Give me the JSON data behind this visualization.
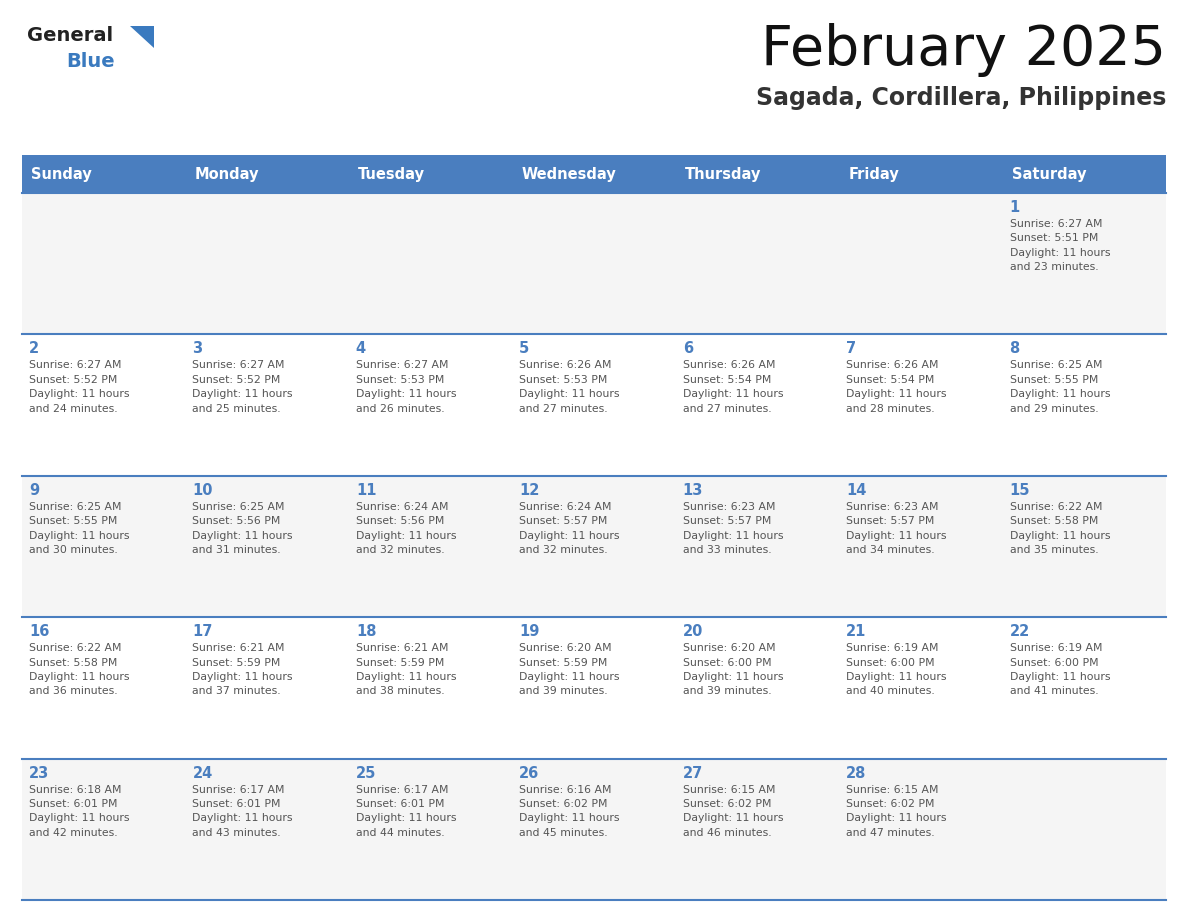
{
  "title": "February 2025",
  "subtitle": "Sagada, Cordillera, Philippines",
  "header_bg": "#4a7ebf",
  "header_text_color": "#FFFFFF",
  "day_names": [
    "Sunday",
    "Monday",
    "Tuesday",
    "Wednesday",
    "Thursday",
    "Friday",
    "Saturday"
  ],
  "row_bg_odd": "#f5f5f5",
  "row_bg_even": "#ffffff",
  "separator_color": "#4a7ebf",
  "day_num_color": "#4a7ebf",
  "info_text_color": "#555555",
  "logo_general_color": "#222222",
  "logo_blue_color": "#3a7abf",
  "calendar": [
    [
      {
        "day": null,
        "info": ""
      },
      {
        "day": null,
        "info": ""
      },
      {
        "day": null,
        "info": ""
      },
      {
        "day": null,
        "info": ""
      },
      {
        "day": null,
        "info": ""
      },
      {
        "day": null,
        "info": ""
      },
      {
        "day": 1,
        "info": "Sunrise: 6:27 AM\nSunset: 5:51 PM\nDaylight: 11 hours\nand 23 minutes."
      }
    ],
    [
      {
        "day": 2,
        "info": "Sunrise: 6:27 AM\nSunset: 5:52 PM\nDaylight: 11 hours\nand 24 minutes."
      },
      {
        "day": 3,
        "info": "Sunrise: 6:27 AM\nSunset: 5:52 PM\nDaylight: 11 hours\nand 25 minutes."
      },
      {
        "day": 4,
        "info": "Sunrise: 6:27 AM\nSunset: 5:53 PM\nDaylight: 11 hours\nand 26 minutes."
      },
      {
        "day": 5,
        "info": "Sunrise: 6:26 AM\nSunset: 5:53 PM\nDaylight: 11 hours\nand 27 minutes."
      },
      {
        "day": 6,
        "info": "Sunrise: 6:26 AM\nSunset: 5:54 PM\nDaylight: 11 hours\nand 27 minutes."
      },
      {
        "day": 7,
        "info": "Sunrise: 6:26 AM\nSunset: 5:54 PM\nDaylight: 11 hours\nand 28 minutes."
      },
      {
        "day": 8,
        "info": "Sunrise: 6:25 AM\nSunset: 5:55 PM\nDaylight: 11 hours\nand 29 minutes."
      }
    ],
    [
      {
        "day": 9,
        "info": "Sunrise: 6:25 AM\nSunset: 5:55 PM\nDaylight: 11 hours\nand 30 minutes."
      },
      {
        "day": 10,
        "info": "Sunrise: 6:25 AM\nSunset: 5:56 PM\nDaylight: 11 hours\nand 31 minutes."
      },
      {
        "day": 11,
        "info": "Sunrise: 6:24 AM\nSunset: 5:56 PM\nDaylight: 11 hours\nand 32 minutes."
      },
      {
        "day": 12,
        "info": "Sunrise: 6:24 AM\nSunset: 5:57 PM\nDaylight: 11 hours\nand 32 minutes."
      },
      {
        "day": 13,
        "info": "Sunrise: 6:23 AM\nSunset: 5:57 PM\nDaylight: 11 hours\nand 33 minutes."
      },
      {
        "day": 14,
        "info": "Sunrise: 6:23 AM\nSunset: 5:57 PM\nDaylight: 11 hours\nand 34 minutes."
      },
      {
        "day": 15,
        "info": "Sunrise: 6:22 AM\nSunset: 5:58 PM\nDaylight: 11 hours\nand 35 minutes."
      }
    ],
    [
      {
        "day": 16,
        "info": "Sunrise: 6:22 AM\nSunset: 5:58 PM\nDaylight: 11 hours\nand 36 minutes."
      },
      {
        "day": 17,
        "info": "Sunrise: 6:21 AM\nSunset: 5:59 PM\nDaylight: 11 hours\nand 37 minutes."
      },
      {
        "day": 18,
        "info": "Sunrise: 6:21 AM\nSunset: 5:59 PM\nDaylight: 11 hours\nand 38 minutes."
      },
      {
        "day": 19,
        "info": "Sunrise: 6:20 AM\nSunset: 5:59 PM\nDaylight: 11 hours\nand 39 minutes."
      },
      {
        "day": 20,
        "info": "Sunrise: 6:20 AM\nSunset: 6:00 PM\nDaylight: 11 hours\nand 39 minutes."
      },
      {
        "day": 21,
        "info": "Sunrise: 6:19 AM\nSunset: 6:00 PM\nDaylight: 11 hours\nand 40 minutes."
      },
      {
        "day": 22,
        "info": "Sunrise: 6:19 AM\nSunset: 6:00 PM\nDaylight: 11 hours\nand 41 minutes."
      }
    ],
    [
      {
        "day": 23,
        "info": "Sunrise: 6:18 AM\nSunset: 6:01 PM\nDaylight: 11 hours\nand 42 minutes."
      },
      {
        "day": 24,
        "info": "Sunrise: 6:17 AM\nSunset: 6:01 PM\nDaylight: 11 hours\nand 43 minutes."
      },
      {
        "day": 25,
        "info": "Sunrise: 6:17 AM\nSunset: 6:01 PM\nDaylight: 11 hours\nand 44 minutes."
      },
      {
        "day": 26,
        "info": "Sunrise: 6:16 AM\nSunset: 6:02 PM\nDaylight: 11 hours\nand 45 minutes."
      },
      {
        "day": 27,
        "info": "Sunrise: 6:15 AM\nSunset: 6:02 PM\nDaylight: 11 hours\nand 46 minutes."
      },
      {
        "day": 28,
        "info": "Sunrise: 6:15 AM\nSunset: 6:02 PM\nDaylight: 11 hours\nand 47 minutes."
      },
      {
        "day": null,
        "info": ""
      }
    ]
  ]
}
